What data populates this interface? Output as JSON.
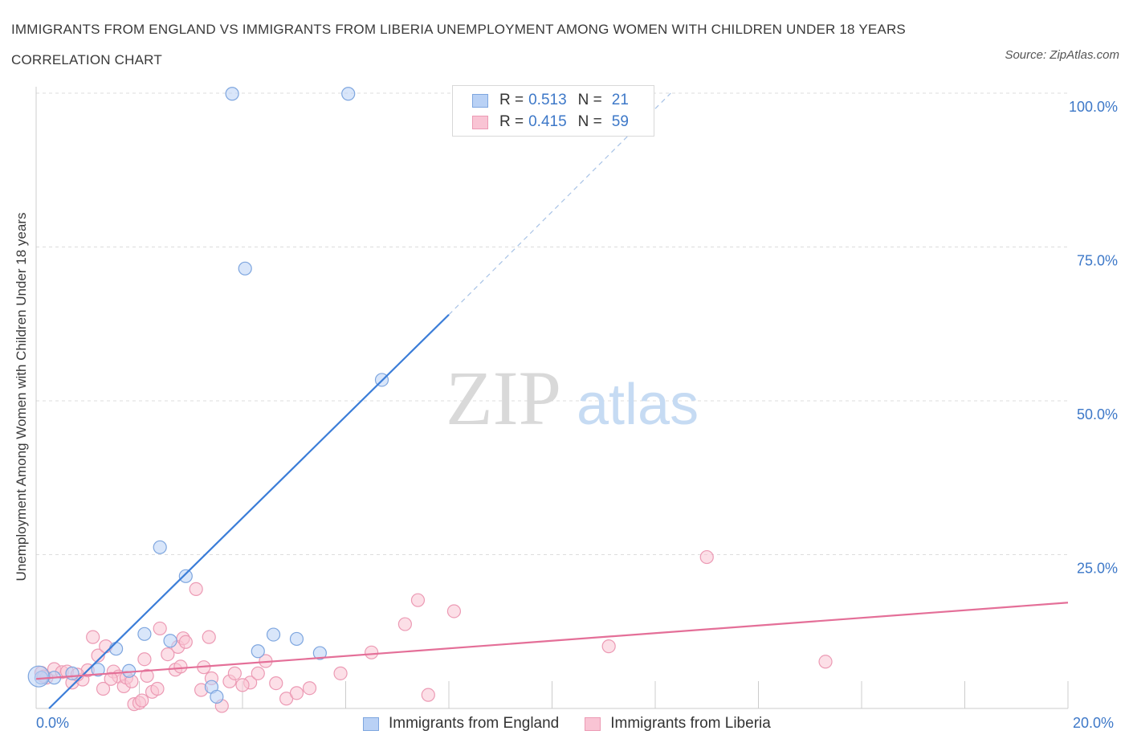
{
  "title": "IMMIGRANTS FROM ENGLAND VS IMMIGRANTS FROM LIBERIA UNEMPLOYMENT AMONG WOMEN WITH CHILDREN UNDER 18 YEARS CORRELATION CHART",
  "source": "Source: ZipAtlas.com",
  "watermark": {
    "zip": "ZIP",
    "atlas": "atlas"
  },
  "legend_top": {
    "england": {
      "r_label": "R =",
      "r_value": "0.513",
      "n_label": "N =",
      "n_value": "21"
    },
    "liberia": {
      "r_label": "R =",
      "r_value": "0.415",
      "n_label": "N =",
      "n_value": "59"
    }
  },
  "colors": {
    "england_fill": "#b9d1f5",
    "england_stroke": "#7ea6df",
    "england_line": "#3b7dd8",
    "liberia_fill": "#f9c4d4",
    "liberia_stroke": "#ec9ab4",
    "liberia_line": "#e46f98",
    "tick_text": "#3d78c8",
    "grid": "#dddddd"
  },
  "chart_data": {
    "type": "scatter",
    "title": "IMMIGRANTS FROM ENGLAND VS IMMIGRANTS FROM LIBERIA UNEMPLOYMENT AMONG WOMEN WITH CHILDREN UNDER 18 YEARS CORRELATION CHART",
    "xlabel": "",
    "ylabel": "Unemployment Among Women with Children Under 18 years",
    "xlim": [
      0,
      20
    ],
    "ylim": [
      0,
      100
    ],
    "x_tick_labels": [
      "0.0%",
      "20.0%"
    ],
    "y_tick_labels": [
      "25.0%",
      "50.0%",
      "75.0%",
      "100.0%"
    ],
    "y_ticks": [
      25,
      50,
      75,
      100
    ],
    "grid": true,
    "legend": "bottom",
    "series": [
      {
        "name": "Immigrants from England",
        "r": 0.513,
        "n": 21,
        "trend": {
          "x": [
            0.25,
            8.0
          ],
          "y": [
            0.0,
            64.0
          ],
          "dashed_to": [
            12.3,
            100.0
          ]
        },
        "points": [
          [
            0.1,
            5.0
          ],
          [
            0.35,
            5.0
          ],
          [
            0.7,
            5.7
          ],
          [
            1.2,
            6.3
          ],
          [
            1.55,
            9.7
          ],
          [
            1.8,
            6.1
          ],
          [
            2.1,
            12.1
          ],
          [
            2.4,
            26.2
          ],
          [
            2.6,
            11.0
          ],
          [
            2.9,
            21.5
          ],
          [
            3.4,
            3.5
          ],
          [
            3.5,
            1.9
          ],
          [
            3.8,
            99.9
          ],
          [
            4.05,
            71.5
          ],
          [
            4.3,
            9.3
          ],
          [
            4.6,
            12.0
          ],
          [
            5.05,
            11.3
          ],
          [
            5.5,
            9.0
          ],
          [
            6.05,
            99.9
          ],
          [
            6.7,
            53.4
          ],
          [
            0.05,
            5.2
          ]
        ]
      },
      {
        "name": "Immigrants from Liberia",
        "r": 0.415,
        "n": 59,
        "trend": {
          "x": [
            0.0,
            20.0
          ],
          "y": [
            4.8,
            17.2
          ]
        },
        "points": [
          [
            0.1,
            5.8
          ],
          [
            0.2,
            5.0
          ],
          [
            0.35,
            6.4
          ],
          [
            0.5,
            5.9
          ],
          [
            0.7,
            4.2
          ],
          [
            0.9,
            4.7
          ],
          [
            1.0,
            6.2
          ],
          [
            1.1,
            11.6
          ],
          [
            1.2,
            8.6
          ],
          [
            1.3,
            3.2
          ],
          [
            1.35,
            10.1
          ],
          [
            1.5,
            6.0
          ],
          [
            1.6,
            5.2
          ],
          [
            1.7,
            3.6
          ],
          [
            1.75,
            5.0
          ],
          [
            1.85,
            4.4
          ],
          [
            1.9,
            0.7
          ],
          [
            2.0,
            0.9
          ],
          [
            2.05,
            1.3
          ],
          [
            2.1,
            8.0
          ],
          [
            2.15,
            5.3
          ],
          [
            2.25,
            2.7
          ],
          [
            2.35,
            3.2
          ],
          [
            2.4,
            13.0
          ],
          [
            2.55,
            8.8
          ],
          [
            2.7,
            6.3
          ],
          [
            2.75,
            10.0
          ],
          [
            2.85,
            11.4
          ],
          [
            2.9,
            10.8
          ],
          [
            3.1,
            19.4
          ],
          [
            3.25,
            6.7
          ],
          [
            3.35,
            11.6
          ],
          [
            3.4,
            4.9
          ],
          [
            3.6,
            0.4
          ],
          [
            3.75,
            4.4
          ],
          [
            3.85,
            5.7
          ],
          [
            4.15,
            4.2
          ],
          [
            4.3,
            5.7
          ],
          [
            4.45,
            7.7
          ],
          [
            4.65,
            4.1
          ],
          [
            4.85,
            1.6
          ],
          [
            5.05,
            2.5
          ],
          [
            5.3,
            3.3
          ],
          [
            5.9,
            5.7
          ],
          [
            6.5,
            9.1
          ],
          [
            7.15,
            13.7
          ],
          [
            7.4,
            17.6
          ],
          [
            7.6,
            2.2
          ],
          [
            8.1,
            15.8
          ],
          [
            11.1,
            10.1
          ],
          [
            13.0,
            24.6
          ],
          [
            15.3,
            7.6
          ],
          [
            0.15,
            5.2
          ],
          [
            0.6,
            6.0
          ],
          [
            0.8,
            5.5
          ],
          [
            1.45,
            4.8
          ],
          [
            2.8,
            6.8
          ],
          [
            3.2,
            3.0
          ],
          [
            4.0,
            3.8
          ]
        ]
      }
    ]
  },
  "legend_bottom": {
    "england": "Immigrants from England",
    "liberia": "Immigrants from Liberia"
  }
}
